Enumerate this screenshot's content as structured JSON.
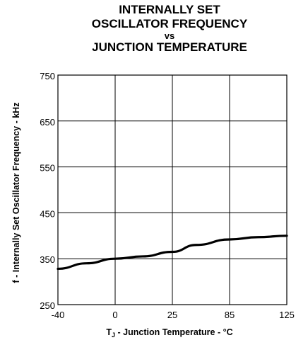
{
  "chart_data": {
    "type": "line",
    "title_lines": [
      "INTERNALLY SET",
      "OSCILLATOR FREQUENCY",
      "vs",
      "JUNCTION TEMPERATURE"
    ],
    "xlabel_main": "T",
    "xlabel_sub": "J",
    "xlabel_rest": " - Junction Temperature - °C",
    "ylabel": "f - Internally Set Oscillator Frequency - kHz",
    "x_tick_labels": [
      "-40",
      "0",
      "25",
      "85",
      "125"
    ],
    "y_tick_labels": [
      "750",
      "650",
      "550",
      "450",
      "350",
      "250"
    ],
    "ylim": [
      250,
      750
    ],
    "grid": true,
    "series": [
      {
        "x": [
          "-40",
          "-20",
          "0",
          "12",
          "25",
          "50",
          "85",
          "105",
          "125"
        ],
        "values": [
          328,
          340,
          350,
          355,
          365,
          380,
          392,
          397,
          400
        ]
      }
    ]
  }
}
